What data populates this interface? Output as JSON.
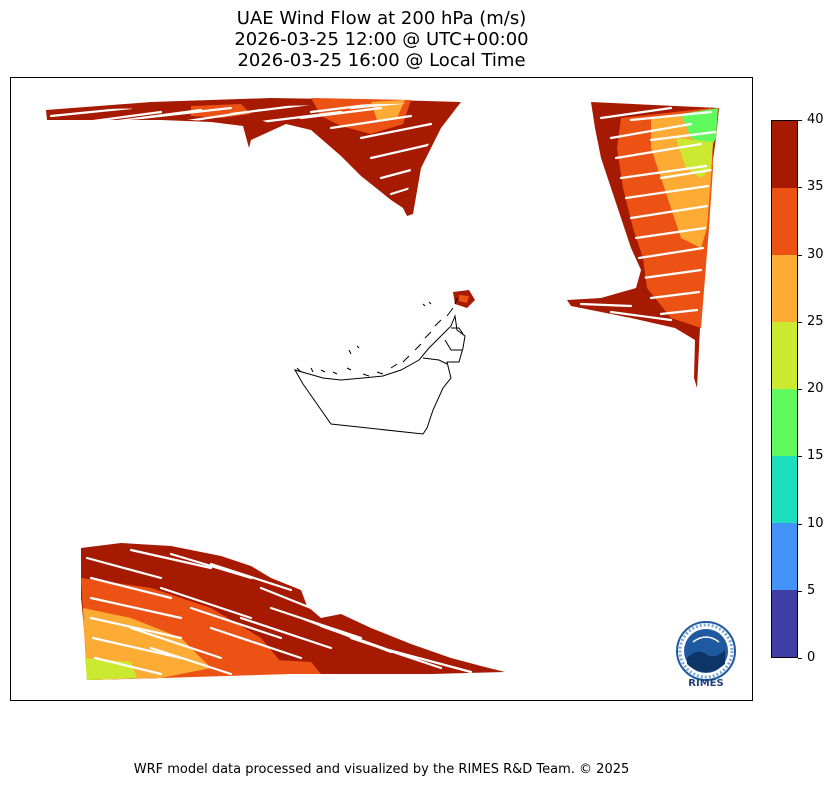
{
  "title": {
    "line1": "UAE Wind Flow at 200 hPa (m/s)",
    "line2": "2026-03-25 12:00 @ UTC+00:00",
    "line3": "2026-03-25 16:00 @ Local Time"
  },
  "colorbar": {
    "ticks": [
      "0",
      "5",
      "10",
      "15",
      "20",
      "25",
      "30",
      "35",
      "40"
    ],
    "colors": [
      "#3f3da6",
      "#4393f8",
      "#1ddfbd",
      "#61fa5e",
      "#cbe930",
      "#fcab35",
      "#ec5214",
      "#a71a02"
    ]
  },
  "logo": {
    "text": "RIMES"
  },
  "footer": {
    "text": "WRF model data processed and visualized by the RIMES R&D Team. © 2025"
  },
  "map": {
    "vector_color": "#ffffff",
    "boundary_color": "#000000"
  }
}
